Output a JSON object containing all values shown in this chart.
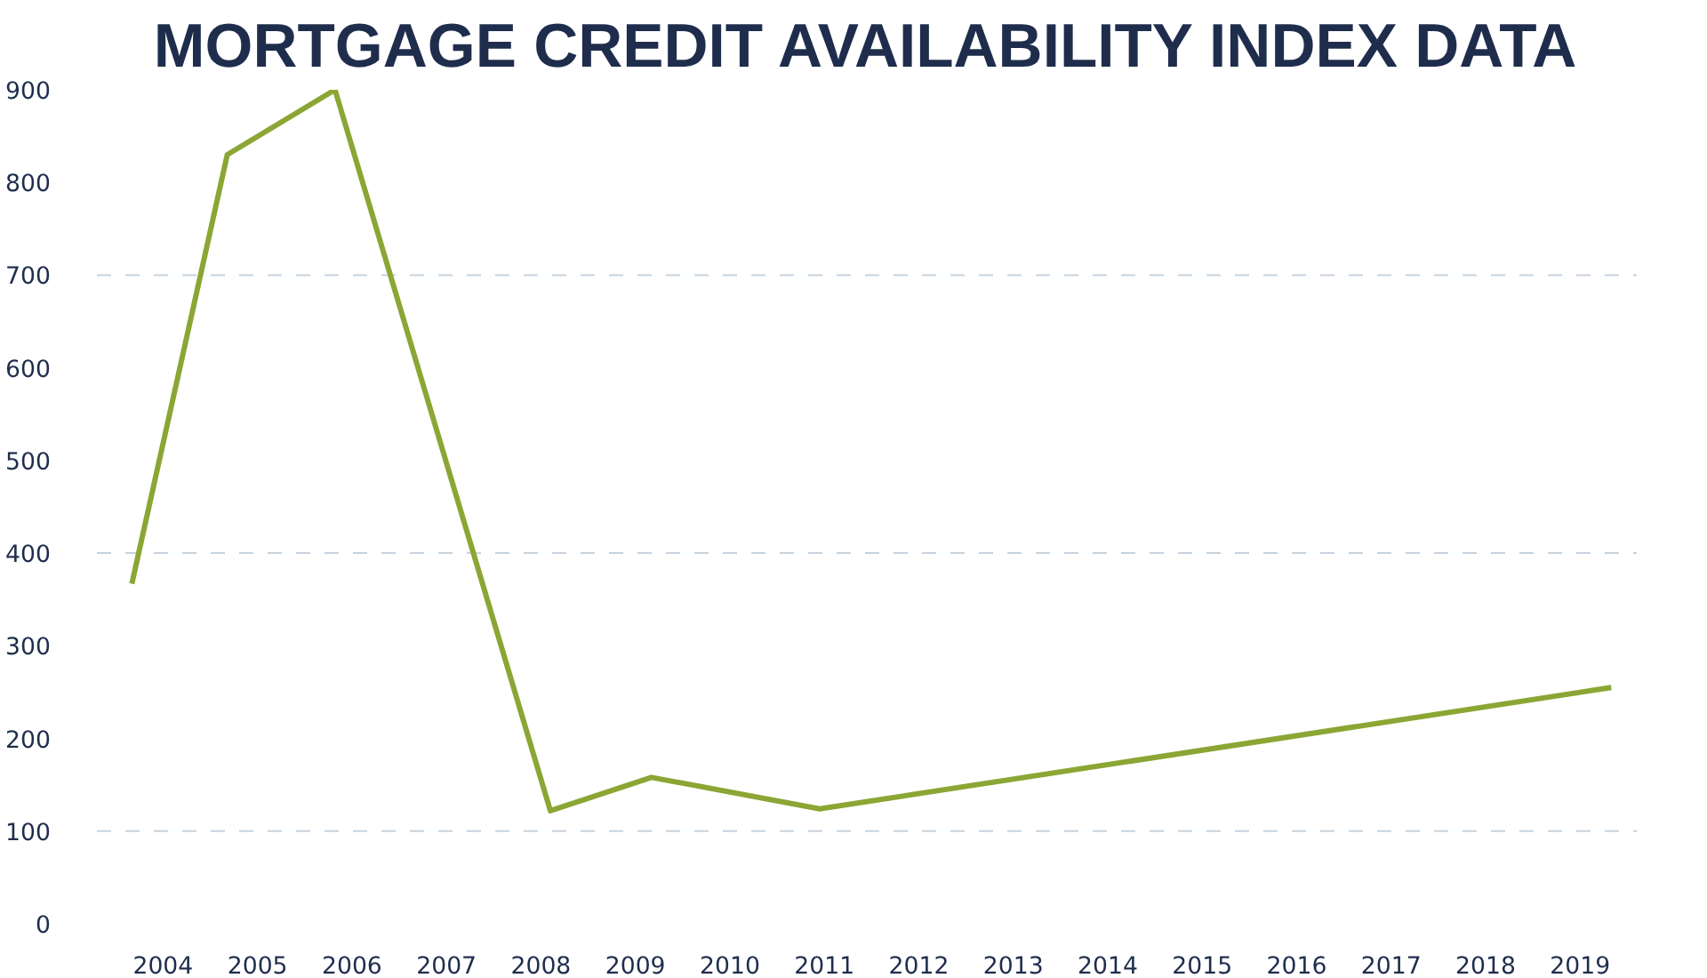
{
  "chart_data": {
    "type": "line",
    "title": "MORTGAGE CREDIT AVAILABILITY INDEX DATA",
    "x": [
      2003.67,
      2004.68,
      2005.82,
      2008.1,
      2009.17,
      2010.95,
      2019.33
    ],
    "series": [
      {
        "color": "#8ba634",
        "values": [
          367,
          830,
          900,
          122,
          158,
          124,
          255
        ]
      }
    ],
    "xlim": [
      2003.3,
      2019.6
    ],
    "xticks": [
      2004,
      2005,
      2006,
      2007,
      2008,
      2009,
      2010,
      2011,
      2012,
      2013,
      2014,
      2015,
      2016,
      2017,
      2018,
      2019
    ],
    "ylim": [
      0,
      900
    ],
    "yticks": [
      0,
      100,
      200,
      300,
      400,
      500,
      600,
      700,
      800,
      900
    ],
    "grid": false,
    "ref_lines": [
      {
        "axis": "y",
        "value": 100,
        "color": "#c5d3df",
        "line_style": "dashed"
      },
      {
        "axis": "y",
        "value": 400,
        "color": "#c5d3df",
        "line_style": "dashed"
      },
      {
        "axis": "y",
        "value": 700,
        "color": "#c5d3df",
        "line_style": "dashed"
      }
    ]
  }
}
